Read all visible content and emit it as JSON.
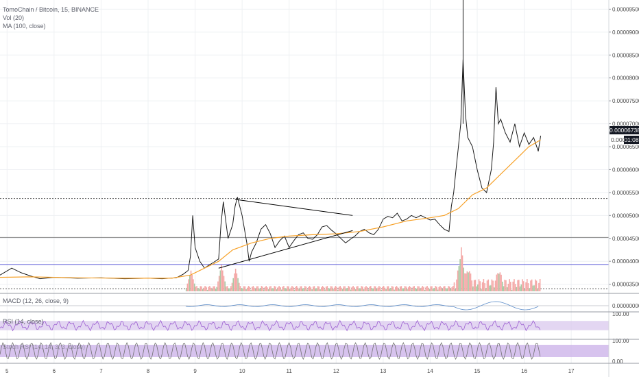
{
  "legend": {
    "symbol": "TomoChain / Bitcoin, 15, BINANCE",
    "volume": "Vol (20)",
    "ma": "MA (100, close)"
  },
  "panes": {
    "macd": "MACD (12, 26, close, 9)",
    "rsi": "RSI (14, close)",
    "stoch": "Stoch RSI (14, 14, 3, 3, close)"
  },
  "price_badge": {
    "price": "0.00006738",
    "countdown": "01:08",
    "partial": "0.000"
  },
  "colors": {
    "price_line": "#1a1a1a",
    "ma_line": "#f7a128",
    "volume_up": "#c8e6c9",
    "volume_down": "#f4a9a7",
    "volume_bar": "#a9c9a4",
    "rsi_band": "#d7c4ec",
    "rsi_line": "#9c5fd1",
    "stoch_band": "#cdb4ea",
    "grid": "#eef0f3",
    "axis_text": "#4a4a4a",
    "purple_level": "#5b5bd6",
    "badge_bg": "#131722"
  },
  "chart_data": {
    "type": "line",
    "title": "TomoChain / Bitcoin, 15, BINANCE",
    "x_ticks": [
      "5",
      "6",
      "7",
      "8",
      "9",
      "10",
      "11",
      "12",
      "13",
      "14",
      "15",
      "16",
      "17"
    ],
    "y_ticks": [
      "0.00009500",
      "0.00009000",
      "0.00008500",
      "0.00008000",
      "0.00007500",
      "0.00007000",
      "0.00006500",
      "0.00006000",
      "0.00005500",
      "0.00005000",
      "0.00004500",
      "0.00004000",
      "0.00003500"
    ],
    "ylim": [
      3.3e-05,
      9.7e-05
    ],
    "xlim": [
      4.85,
      17.8
    ],
    "series": [
      {
        "name": "price",
        "x": [
          4.85,
          5.1,
          5.3,
          5.5,
          5.7,
          6.0,
          6.5,
          7.0,
          7.5,
          8.0,
          8.3,
          8.6,
          8.75,
          8.85,
          8.9,
          8.95,
          9.0,
          9.1,
          9.2,
          9.3,
          9.4,
          9.5,
          9.55,
          9.6,
          9.7,
          9.8,
          9.85,
          9.9,
          10.0,
          10.1,
          10.15,
          10.2,
          10.3,
          10.4,
          10.5,
          10.6,
          10.7,
          10.8,
          10.9,
          11.0,
          11.1,
          11.2,
          11.3,
          11.4,
          11.5,
          11.6,
          11.7,
          11.8,
          11.9,
          12.0,
          12.1,
          12.2,
          12.3,
          12.4,
          12.5,
          12.6,
          12.7,
          12.8,
          12.9,
          13.0,
          13.1,
          13.2,
          13.3,
          13.4,
          13.5,
          13.6,
          13.7,
          13.8,
          13.9,
          14.0,
          14.1,
          14.2,
          14.3,
          14.4,
          14.45,
          14.5,
          14.55,
          14.6,
          14.65,
          14.7,
          14.75,
          14.8,
          14.9,
          15.0,
          15.1,
          15.2,
          15.3,
          15.35,
          15.4,
          15.45,
          15.5,
          15.6,
          15.7,
          15.8,
          15.9,
          16.0,
          16.1,
          16.2,
          16.3,
          16.35
        ],
        "values": [
          3.7e-05,
          3.85e-05,
          3.75e-05,
          3.68e-05,
          3.62e-05,
          3.65e-05,
          3.63e-05,
          3.64e-05,
          3.62e-05,
          3.63e-05,
          3.62e-05,
          3.64e-05,
          3.72e-05,
          3.8e-05,
          4.1e-05,
          5e-05,
          4.3e-05,
          4e-05,
          3.85e-05,
          3.92e-05,
          3.98e-05,
          4.05e-05,
          4.8e-05,
          5.3e-05,
          4.5e-05,
          4.8e-05,
          5.2e-05,
          5.4e-05,
          5e-05,
          4.4e-05,
          4e-05,
          4.2e-05,
          4.4e-05,
          4.7e-05,
          4.8e-05,
          4.6e-05,
          4.3e-05,
          4.45e-05,
          4.55e-05,
          4.3e-05,
          4.45e-05,
          4.58e-05,
          4.62e-05,
          4.5e-05,
          4.48e-05,
          4.58e-05,
          4.75e-05,
          4.78e-05,
          4.68e-05,
          4.6e-05,
          4.5e-05,
          4.4e-05,
          4.48e-05,
          4.55e-05,
          4.65e-05,
          4.7e-05,
          4.62e-05,
          4.58e-05,
          4.7e-05,
          4.92e-05,
          4.98e-05,
          4.95e-05,
          5.05e-05,
          4.88e-05,
          4.92e-05,
          5e-05,
          4.95e-05,
          5e-05,
          4.95e-05,
          4.9e-05,
          4.92e-05,
          4.8e-05,
          4.7e-05,
          4.65e-05,
          5.2e-05,
          5.5e-05,
          6e-05,
          6.5e-05,
          7e-05,
          8.4e-05,
          7.2e-05,
          6.7e-05,
          6.5e-05,
          6e-05,
          5.6e-05,
          5.5e-05,
          6e-05,
          6.6e-05,
          7.8e-05,
          7e-05,
          7.1e-05,
          6.8e-05,
          6.6e-05,
          7e-05,
          6.5e-05,
          6.8e-05,
          6.55e-05,
          6.7e-05,
          6.4e-05,
          6.74e-05
        ]
      },
      {
        "name": "MA (100, close)",
        "x": [
          4.85,
          5.5,
          6.5,
          7.5,
          8.5,
          8.9,
          9.2,
          9.5,
          9.8,
          10.2,
          10.6,
          11.0,
          11.5,
          12.0,
          12.5,
          13.0,
          13.5,
          14.0,
          14.3,
          14.6,
          14.9,
          15.2,
          15.5,
          15.8,
          16.1,
          16.35
        ],
        "values": [
          3.65e-05,
          3.66e-05,
          3.64e-05,
          3.63e-05,
          3.63e-05,
          3.7e-05,
          3.85e-05,
          4e-05,
          4.25e-05,
          4.4e-05,
          4.5e-05,
          4.55e-05,
          4.58e-05,
          4.6e-05,
          4.65e-05,
          4.75e-05,
          4.88e-05,
          4.95e-05,
          5e-05,
          5.15e-05,
          5.45e-05,
          5.6e-05,
          5.9e-05,
          6.2e-05,
          6.5e-05,
          6.65e-05
        ]
      }
    ],
    "annotations": {
      "dotted_levels": [
        5.37e-05,
        3.4e-05
      ],
      "solid_levels": [
        4.52e-05
      ],
      "purple_level": 3.93e-05,
      "triangle_upper": [
        [
          9.85,
          5.35e-05
        ],
        [
          12.35,
          5e-05
        ]
      ],
      "triangle_lower": [
        [
          9.5,
          3.85e-05
        ],
        [
          12.35,
          4.67e-05
        ]
      ]
    },
    "volume": {
      "x": [
        8.9,
        9.55,
        9.85,
        14.65,
        14.8,
        15.45
      ],
      "values": [
        0.55,
        0.7,
        0.6,
        1.0,
        0.5,
        0.45
      ]
    },
    "rsi": {
      "band": [
        30,
        70
      ],
      "ticks": [
        "100.00"
      ]
    },
    "stoch": {
      "band": [
        20,
        80
      ],
      "ticks": [
        "100.00",
        "0.00"
      ]
    },
    "macd": {
      "ticks": [
        "0.00000000"
      ]
    }
  }
}
